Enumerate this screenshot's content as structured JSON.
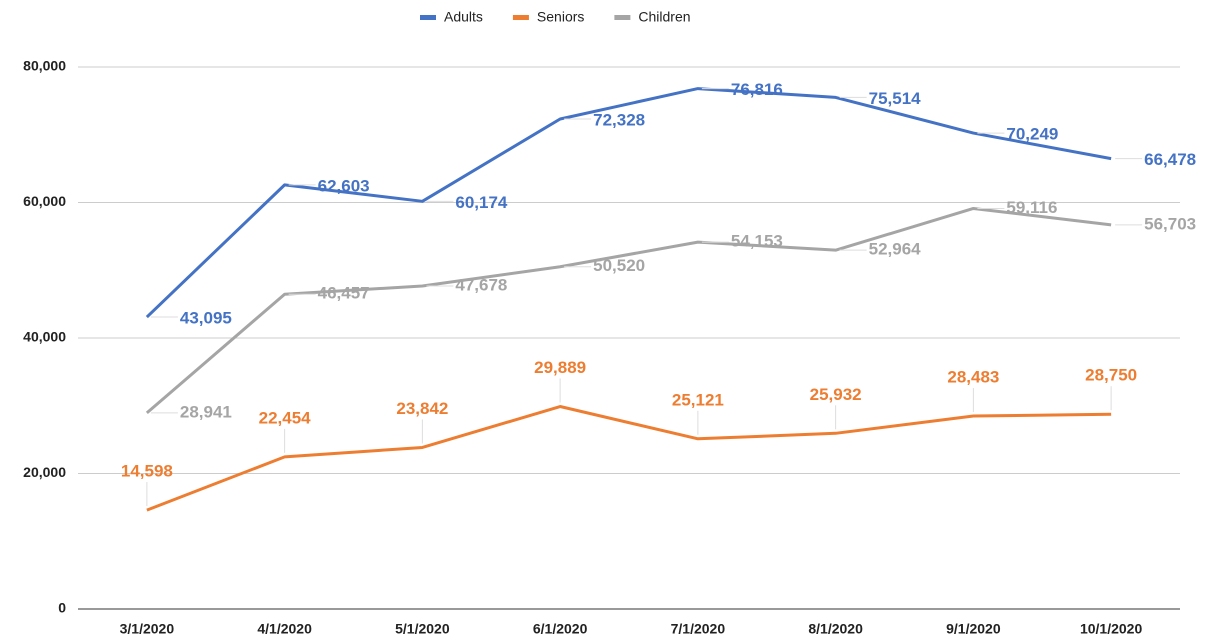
{
  "chart_data": {
    "type": "line",
    "categories": [
      "3/1/2020",
      "4/1/2020",
      "5/1/2020",
      "6/1/2020",
      "7/1/2020",
      "8/1/2020",
      "9/1/2020",
      "10/1/2020"
    ],
    "series": [
      {
        "name": "Adults",
        "color": "#4472c4",
        "values": [
          43095,
          62603,
          60174,
          72328,
          76816,
          75514,
          70249,
          66478
        ],
        "value_labels": [
          "43,095",
          "62,603",
          "60,174",
          "72,328",
          "76,816",
          "75,514",
          "70,249",
          "66,478"
        ]
      },
      {
        "name": "Seniors",
        "color": "#ed7d31",
        "values": [
          14598,
          22454,
          23842,
          29889,
          25121,
          25932,
          28483,
          28750
        ],
        "value_labels": [
          "14,598",
          "22,454",
          "23,842",
          "29,889",
          "25,121",
          "25,932",
          "28,483",
          "28,750"
        ]
      },
      {
        "name": "Children",
        "color": "#a5a5a5",
        "values": [
          28941,
          46457,
          47678,
          50520,
          54153,
          52964,
          59116,
          56703
        ],
        "value_labels": [
          "28,941",
          "46,457",
          "47,678",
          "50,520",
          "54,153",
          "52,964",
          "59,116",
          "56,703"
        ]
      }
    ],
    "ylim": [
      0,
      80000
    ],
    "yticks": [
      0,
      {
        "value": 20000,
        "label": "20,000"
      },
      {
        "value": 40000,
        "label": "40,000"
      },
      {
        "value": 60000,
        "label": "60,000"
      },
      {
        "value": 80000,
        "label": "80,000"
      }
    ],
    "grid": true,
    "legend": "top"
  }
}
